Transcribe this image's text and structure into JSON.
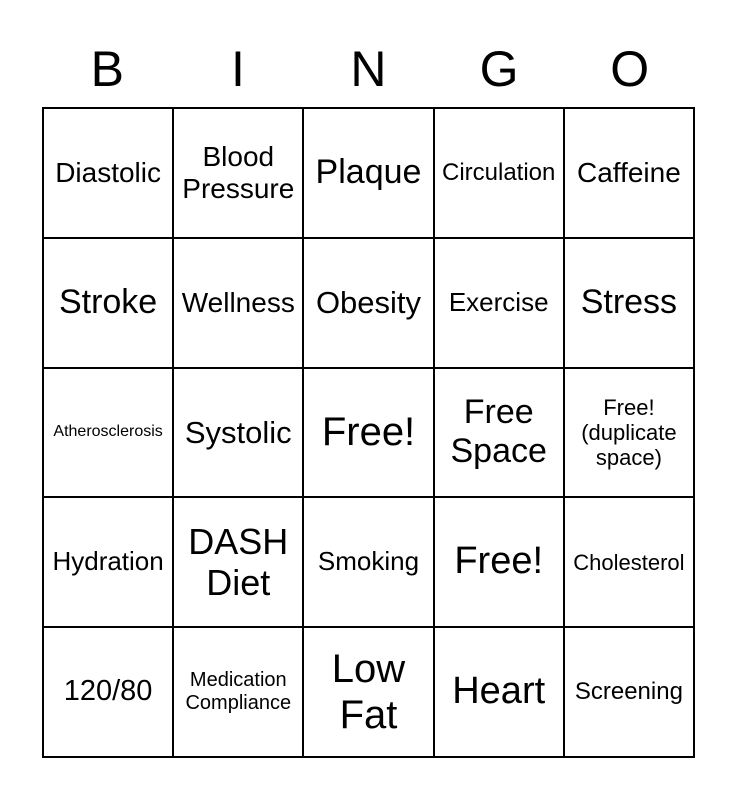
{
  "header": {
    "letters": [
      "B",
      "I",
      "N",
      "G",
      "O"
    ]
  },
  "grid": {
    "cells": [
      {
        "label": "Diastolic"
      },
      {
        "label": "Blood Pressure"
      },
      {
        "label": "Plaque"
      },
      {
        "label": "Circulation"
      },
      {
        "label": "Caffeine"
      },
      {
        "label": "Stroke"
      },
      {
        "label": "Wellness"
      },
      {
        "label": "Obesity"
      },
      {
        "label": "Exercise"
      },
      {
        "label": "Stress"
      },
      {
        "label": "Atherosclerosis"
      },
      {
        "label": "Systolic"
      },
      {
        "label": "Free!"
      },
      {
        "label": "Free Space"
      },
      {
        "label": "Free! (duplicate space)"
      },
      {
        "label": "Hydration"
      },
      {
        "label": "DASH Diet"
      },
      {
        "label": "Smoking"
      },
      {
        "label": "Free!"
      },
      {
        "label": "Cholesterol"
      },
      {
        "label": "120/80"
      },
      {
        "label": "Medication Compliance"
      },
      {
        "label": "Low Fat"
      },
      {
        "label": "Heart"
      },
      {
        "label": "Screening"
      }
    ]
  },
  "colors": {
    "background": "#ffffff",
    "grid_border": "#000000",
    "text": "#000000"
  }
}
